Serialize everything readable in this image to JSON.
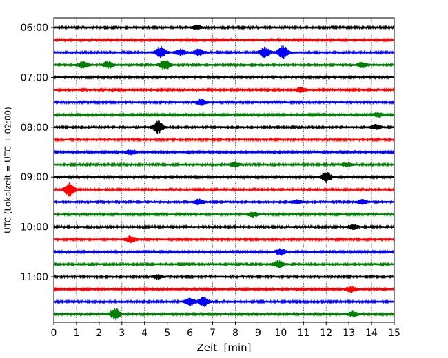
{
  "chart_data": {
    "type": "line",
    "title": "",
    "xlabel": "Zeit  [min]",
    "ylabel": "UTC (Lokalzeit = UTC + 02:00)",
    "xlim": [
      0,
      15
    ],
    "x_ticks": [
      "0",
      "1",
      "2",
      "3",
      "4",
      "5",
      "6",
      "7",
      "8",
      "9",
      "10",
      "11",
      "12",
      "13",
      "14",
      "15"
    ],
    "y_ticks": [
      "06:00",
      "07:00",
      "08:00",
      "09:00",
      "10:00",
      "11:00"
    ],
    "grid": "vertical dotted at each minute",
    "trace_interval_minutes": 15,
    "trace_colors": [
      "#000000",
      "#ff0000",
      "#0000ff",
      "#008000"
    ],
    "traces": [
      {
        "start": "06:00",
        "events": [
          [
            6.3,
            0.35
          ]
        ]
      },
      {
        "start": "06:15",
        "events": []
      },
      {
        "start": "06:30",
        "events": [
          [
            4.7,
            0.9
          ],
          [
            5.6,
            0.5
          ],
          [
            6.4,
            0.5
          ],
          [
            9.3,
            0.8
          ],
          [
            10.1,
            1.0
          ]
        ]
      },
      {
        "start": "06:45",
        "events": [
          [
            1.3,
            0.5
          ],
          [
            2.4,
            0.6
          ],
          [
            4.9,
            0.8
          ],
          [
            13.6,
            0.4
          ]
        ]
      },
      {
        "start": "07:00",
        "events": []
      },
      {
        "start": "07:15",
        "events": [
          [
            10.9,
            0.35
          ]
        ]
      },
      {
        "start": "07:30",
        "events": [
          [
            6.5,
            0.45
          ]
        ]
      },
      {
        "start": "07:45",
        "events": [
          [
            14.3,
            0.35
          ]
        ]
      },
      {
        "start": "08:00",
        "events": [
          [
            4.6,
            1.0
          ],
          [
            14.2,
            0.4
          ]
        ]
      },
      {
        "start": "08:15",
        "events": []
      },
      {
        "start": "08:30",
        "events": [
          [
            3.4,
            0.4
          ]
        ]
      },
      {
        "start": "08:45",
        "events": [
          [
            8.0,
            0.35
          ],
          [
            12.9,
            0.3
          ]
        ]
      },
      {
        "start": "09:00",
        "events": [
          [
            12.0,
            0.8
          ]
        ]
      },
      {
        "start": "09:15",
        "events": [
          [
            0.7,
            1.0
          ]
        ]
      },
      {
        "start": "09:30",
        "events": [
          [
            6.4,
            0.4
          ],
          [
            10.7,
            0.3
          ],
          [
            13.6,
            0.35
          ]
        ]
      },
      {
        "start": "09:45",
        "events": [
          [
            8.8,
            0.35
          ]
        ]
      },
      {
        "start": "10:00",
        "events": [
          [
            13.2,
            0.35
          ]
        ]
      },
      {
        "start": "10:15",
        "events": [
          [
            3.4,
            0.55
          ]
        ]
      },
      {
        "start": "10:30",
        "events": [
          [
            10.0,
            0.5
          ]
        ]
      },
      {
        "start": "10:45",
        "events": [
          [
            9.9,
            0.6
          ]
        ]
      },
      {
        "start": "11:00",
        "events": [
          [
            4.6,
            0.35
          ]
        ]
      },
      {
        "start": "11:15",
        "events": [
          [
            13.1,
            0.4
          ]
        ]
      },
      {
        "start": "11:30",
        "events": [
          [
            6.0,
            0.55
          ],
          [
            6.6,
            0.7
          ]
        ]
      },
      {
        "start": "11:45",
        "events": [
          [
            2.7,
            0.9
          ],
          [
            13.2,
            0.45
          ]
        ]
      }
    ]
  }
}
